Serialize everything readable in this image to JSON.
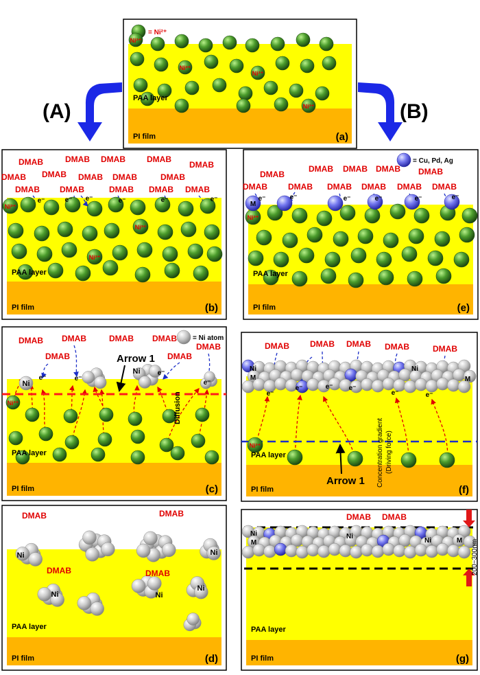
{
  "legend": {
    "ni_ion": "= Ni²⁺",
    "metal_seed": "= Cu, Pd, Ag",
    "ni_atom": "= Ni atom"
  },
  "routes": {
    "left": "(A)",
    "right": "(B)"
  },
  "labels": {
    "paa_layer": "PAA layer",
    "pi_film": "PI film",
    "dmab": "DMAB",
    "electron": "e⁻",
    "ni_ion": "Ni²⁺",
    "ni": "Ni",
    "metal": "M",
    "arrow1": "Arrow 1",
    "diffusion": "Diffusion",
    "gradient_line1": "Concentration gradient",
    "gradient_line2": "(Driving force)",
    "thickness": "200~300nm"
  },
  "panels": {
    "a": "(a)",
    "b": "(b)",
    "c": "(c)",
    "d": "(d)",
    "e": "(e)",
    "f": "(f)",
    "g": "(g)"
  },
  "colors": {
    "paa_layer": "#ffff00",
    "pi_film": "#ffb400",
    "ni_ion": "#3e8e24",
    "metal_seed": "#3f3fe0",
    "ni_atom": "#c8c8c8",
    "dmab_text": "#e00000",
    "electron_path": "#1c2fc8",
    "diffusion_path": "#e00000",
    "route_arrow": "#1b28e6"
  }
}
